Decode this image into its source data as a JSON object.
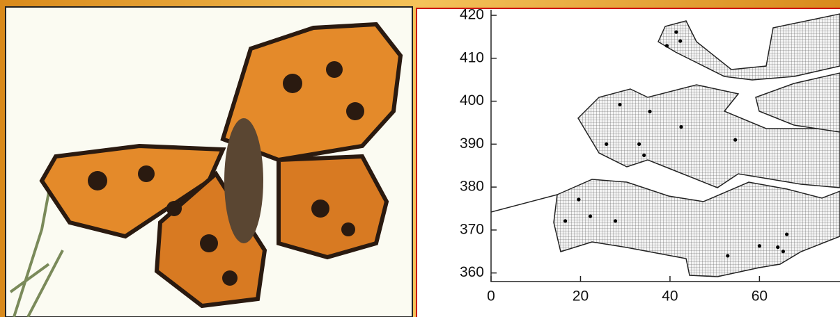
{
  "chart_data": {
    "type": "scatter",
    "x": [
      41.4,
      39.3,
      42.3,
      28.8,
      35.5,
      42.5,
      25.8,
      33.1,
      34.2,
      54.6,
      19.6,
      22.2,
      16.6,
      27.8,
      52.9,
      60.0,
      64.1,
      66.1,
      65.3
    ],
    "y": [
      416.1,
      412.9,
      414.0,
      399.2,
      397.6,
      394.0,
      390.0,
      390.0,
      387.4,
      391.0,
      377.1,
      373.2,
      372.1,
      372.1,
      364.0,
      366.3,
      366.0,
      369.0,
      365.0
    ],
    "color": "#000000",
    "xlim": [
      0,
      78
    ],
    "ylim": [
      358,
      421.3
    ],
    "xticks": [
      0,
      20,
      40,
      60
    ],
    "yticks": [
      360,
      370,
      380,
      390,
      400,
      410,
      420
    ]
  }
}
